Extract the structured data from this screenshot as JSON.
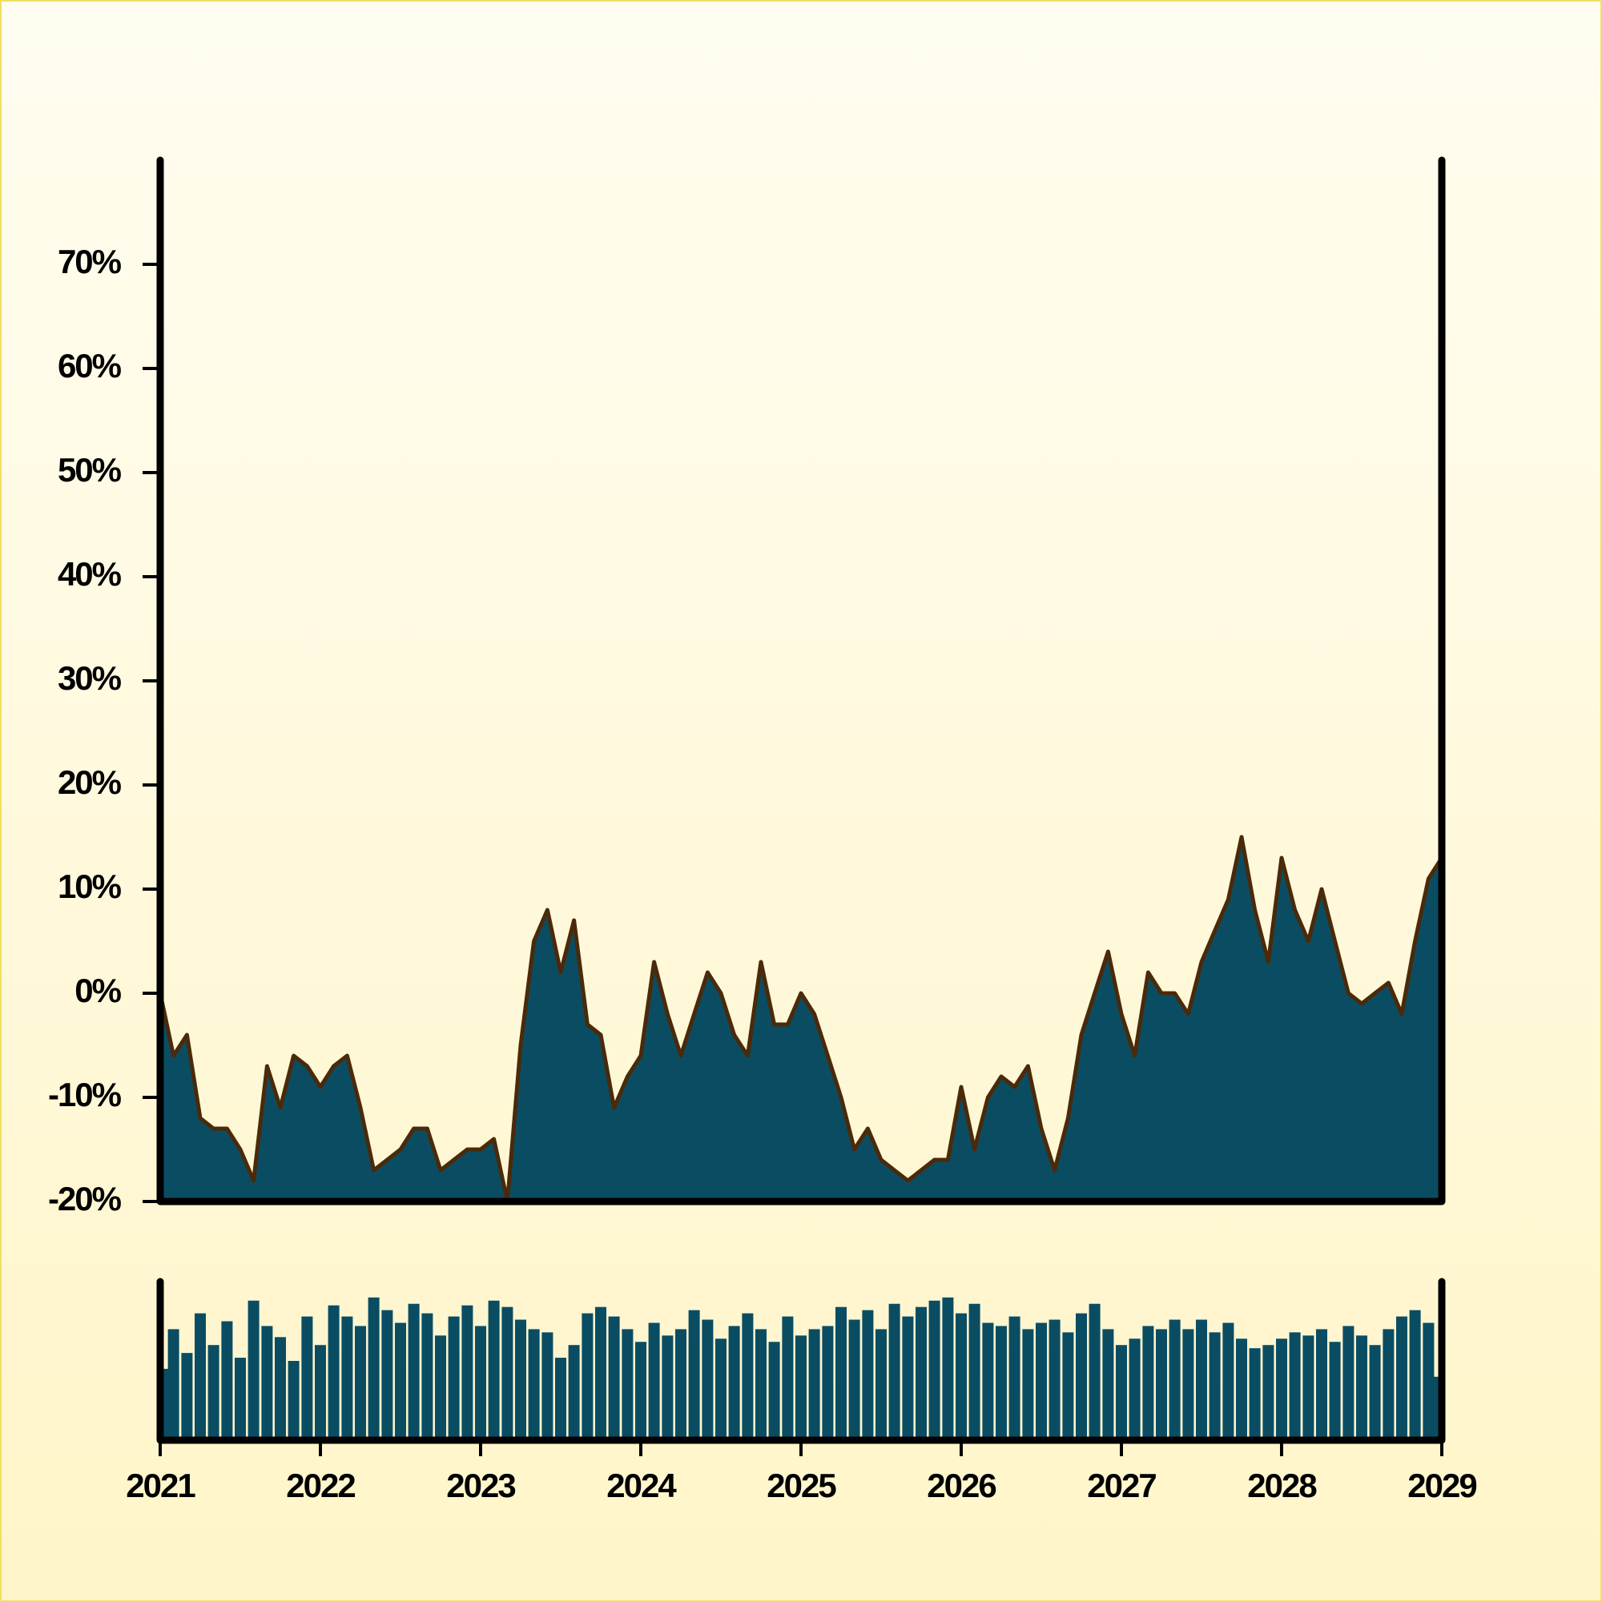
{
  "chart_data": [
    {
      "type": "area",
      "x": [
        2021,
        2021.083,
        2021.167,
        2021.25,
        2021.333,
        2021.417,
        2021.5,
        2021.583,
        2021.667,
        2021.75,
        2021.833,
        2021.917,
        2022,
        2022.083,
        2022.167,
        2022.25,
        2022.333,
        2022.417,
        2022.5,
        2022.583,
        2022.667,
        2022.75,
        2022.833,
        2022.917,
        2023,
        2023.083,
        2023.167,
        2023.25,
        2023.333,
        2023.417,
        2023.5,
        2023.583,
        2023.667,
        2023.75,
        2023.833,
        2023.917,
        2024,
        2024.083,
        2024.167,
        2024.25,
        2024.333,
        2024.417,
        2024.5,
        2024.583,
        2024.667,
        2024.75,
        2024.833,
        2024.917,
        2025,
        2025.083,
        2025.167,
        2025.25,
        2025.333,
        2025.417,
        2025.5,
        2025.583,
        2025.667,
        2025.75,
        2025.833,
        2025.917,
        2026,
        2026.083,
        2026.167,
        2026.25,
        2026.333,
        2026.417,
        2026.5,
        2026.583,
        2026.667,
        2026.75,
        2026.833,
        2026.917,
        2027,
        2027.083,
        2027.167,
        2027.25,
        2027.333,
        2027.417,
        2027.5,
        2027.583,
        2027.667,
        2027.75,
        2027.833,
        2027.917,
        2028,
        2028.083,
        2028.167,
        2028.25,
        2028.333,
        2028.417,
        2028.5,
        2028.583,
        2028.667,
        2028.75,
        2028.833,
        2028.917,
        2029
      ],
      "values": [
        0,
        -6,
        -4,
        -12,
        -13,
        -13,
        -15,
        -18,
        -7,
        -11,
        -6,
        -7,
        -9,
        -7,
        -6,
        -11,
        -17,
        -16,
        -15,
        -13,
        -13,
        -17,
        -16,
        -15,
        -15,
        -14,
        -20,
        -5,
        5,
        8,
        2,
        7,
        -3,
        -4,
        -11,
        -8,
        -6,
        3,
        -2,
        -6,
        -2,
        2,
        0,
        -4,
        -6,
        3,
        -3,
        -3,
        0,
        -2,
        -6,
        -10,
        -15,
        -13,
        -16,
        -17,
        -18,
        -17,
        -16,
        -16,
        -9,
        -15,
        -10,
        -8,
        -9,
        -7,
        -13,
        -17,
        -12,
        -4,
        0,
        4,
        -2,
        -6,
        2,
        0,
        0,
        -2,
        3,
        6,
        9,
        15,
        8,
        3,
        13,
        8,
        5,
        10,
        5,
        0,
        -1,
        0,
        1,
        -2,
        5,
        11,
        13
      ],
      "color": "#0a4d63",
      "line_color": "#4a2a0a",
      "xlim": [
        2021,
        2029
      ],
      "ylim": [
        -20,
        80
      ],
      "yticks": [
        {
          "value": -20,
          "label": "-20%"
        },
        {
          "value": -10,
          "label": "-10%"
        },
        {
          "value": 0,
          "label": "0%"
        },
        {
          "value": 10,
          "label": "10%"
        },
        {
          "value": 20,
          "label": "20%"
        },
        {
          "value": 30,
          "label": "30%"
        },
        {
          "value": 40,
          "label": "40%"
        },
        {
          "value": 50,
          "label": "50%"
        },
        {
          "value": 60,
          "label": "60%"
        },
        {
          "value": 70,
          "label": "70%"
        }
      ]
    },
    {
      "type": "bar",
      "x": [
        2021,
        2021.083,
        2021.167,
        2021.25,
        2021.333,
        2021.417,
        2021.5,
        2021.583,
        2021.667,
        2021.75,
        2021.833,
        2021.917,
        2022,
        2022.083,
        2022.167,
        2022.25,
        2022.333,
        2022.417,
        2022.5,
        2022.583,
        2022.667,
        2022.75,
        2022.833,
        2022.917,
        2023,
        2023.083,
        2023.167,
        2023.25,
        2023.333,
        2023.417,
        2023.5,
        2023.583,
        2023.667,
        2023.75,
        2023.833,
        2023.917,
        2024,
        2024.083,
        2024.167,
        2024.25,
        2024.333,
        2024.417,
        2024.5,
        2024.583,
        2024.667,
        2024.75,
        2024.833,
        2024.917,
        2025,
        2025.083,
        2025.167,
        2025.25,
        2025.333,
        2025.417,
        2025.5,
        2025.583,
        2025.667,
        2025.75,
        2025.833,
        2025.917,
        2026,
        2026.083,
        2026.167,
        2026.25,
        2026.333,
        2026.417,
        2026.5,
        2026.583,
        2026.667,
        2026.75,
        2026.833,
        2026.917,
        2027,
        2027.083,
        2027.167,
        2027.25,
        2027.333,
        2027.417,
        2027.5,
        2027.583,
        2027.667,
        2027.75,
        2027.833,
        2027.917,
        2028,
        2028.083,
        2028.167,
        2028.25,
        2028.333,
        2028.417,
        2028.5,
        2028.583,
        2028.667,
        2028.75,
        2028.833,
        2028.917,
        2029
      ],
      "values": [
        45,
        70,
        55,
        80,
        60,
        75,
        52,
        88,
        72,
        65,
        50,
        78,
        60,
        85,
        78,
        72,
        90,
        82,
        74,
        86,
        80,
        66,
        78,
        85,
        72,
        88,
        84,
        76,
        70,
        68,
        52,
        60,
        80,
        84,
        78,
        70,
        62,
        74,
        66,
        70,
        82,
        76,
        64,
        72,
        80,
        70,
        62,
        78,
        66,
        70,
        72,
        84,
        76,
        82,
        70,
        86,
        78,
        84,
        88,
        90,
        80,
        86,
        74,
        72,
        78,
        70,
        74,
        76,
        68,
        80,
        86,
        70,
        60,
        64,
        72,
        70,
        76,
        70,
        76,
        68,
        74,
        64,
        58,
        60,
        64,
        68,
        66,
        70,
        62,
        72,
        66,
        60,
        70,
        78,
        82,
        74,
        40
      ],
      "color": "#0a4d63",
      "xlim": [
        2021,
        2029
      ],
      "ylim": [
        0,
        100
      ],
      "xticks": [
        2021,
        2022,
        2023,
        2024,
        2025,
        2026,
        2027,
        2028,
        2029
      ]
    }
  ]
}
